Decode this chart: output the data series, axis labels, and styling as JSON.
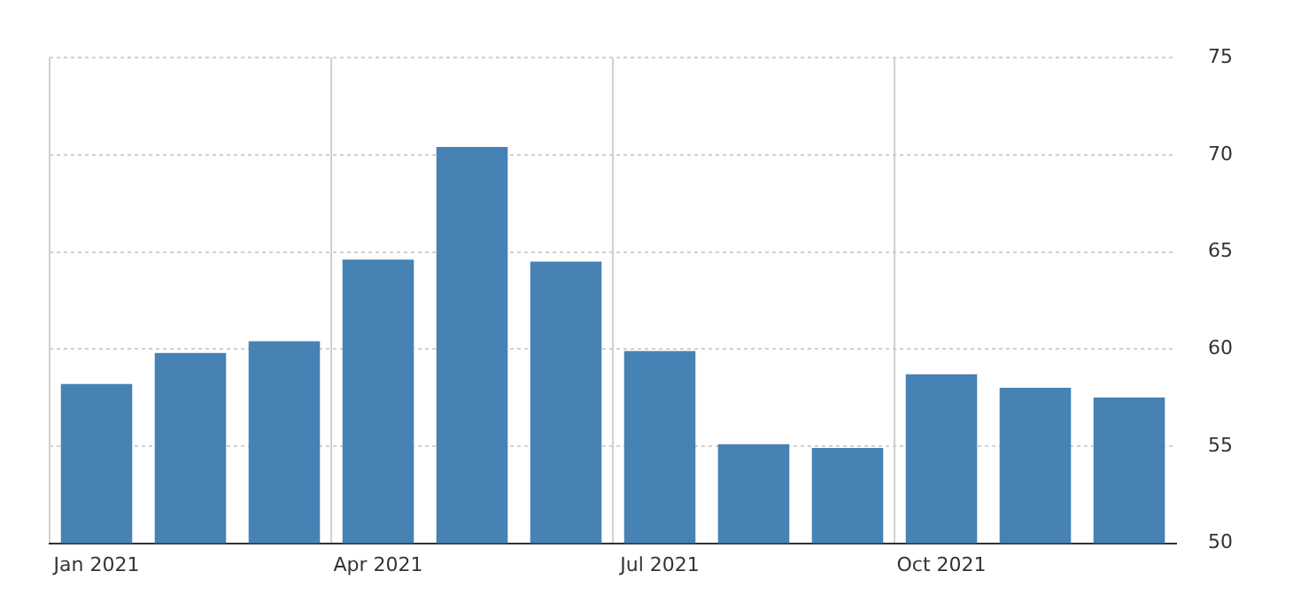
{
  "chart_data": {
    "type": "bar",
    "categories": [
      "Jan 2021",
      null,
      null,
      "Apr 2021",
      null,
      null,
      "Jul 2021",
      null,
      null,
      "Oct 2021",
      null,
      null
    ],
    "values": [
      58.2,
      59.8,
      60.4,
      64.6,
      70.4,
      64.5,
      59.9,
      55.1,
      54.9,
      58.7,
      58.0,
      57.5
    ],
    "color": "#4682b4",
    "ylim": [
      50,
      75
    ],
    "yticks": [
      50,
      55,
      60,
      65,
      70,
      75
    ],
    "grid": true,
    "legend": false
  }
}
